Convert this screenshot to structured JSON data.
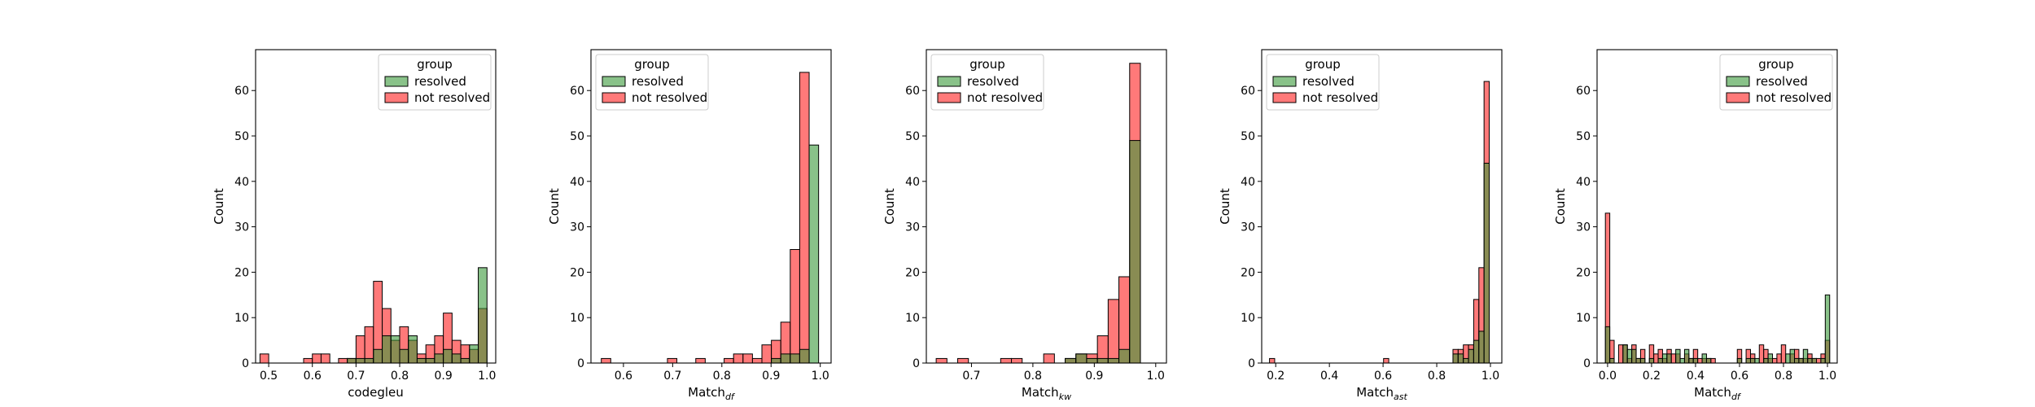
{
  "colors": {
    "resolved": "#3a9a3a",
    "not_resolved": "#ff4040",
    "overlap": "#6b6b1a"
  },
  "legend": {
    "title": "group",
    "entries": [
      "resolved",
      "not resolved"
    ]
  },
  "chart_data": [
    {
      "type": "histogram",
      "xlabel": "codegleu",
      "xlabel_sub": "",
      "ylabel": "Count",
      "xlim": [
        0.47,
        1.02
      ],
      "ylim": [
        0,
        69
      ],
      "xticks": [
        0.5,
        0.6,
        0.7,
        0.8,
        0.9,
        1.0
      ],
      "xtick_labels": [
        "0.5",
        "0.6",
        "0.7",
        "0.8",
        "0.9",
        "1.0"
      ],
      "yticks": [
        0,
        10,
        20,
        30,
        40,
        50,
        60
      ],
      "legend_position": "top-right",
      "bin_width": 0.02,
      "bins": [
        0.49,
        0.51,
        0.53,
        0.55,
        0.57,
        0.59,
        0.61,
        0.63,
        0.65,
        0.67,
        0.69,
        0.71,
        0.73,
        0.75,
        0.77,
        0.79,
        0.81,
        0.83,
        0.85,
        0.87,
        0.89,
        0.91,
        0.93,
        0.95,
        0.97,
        0.99
      ],
      "series": [
        {
          "name": "resolved",
          "values": [
            0,
            0,
            0,
            0,
            0,
            0,
            0,
            0,
            0,
            0,
            1,
            1,
            1,
            3,
            6,
            6,
            3,
            6,
            1,
            1,
            2,
            3,
            2,
            1,
            4,
            21
          ]
        },
        {
          "name": "not resolved",
          "values": [
            2,
            0,
            0,
            0,
            0,
            1,
            2,
            2,
            0,
            1,
            1,
            6,
            8,
            18,
            12,
            5,
            8,
            5,
            2,
            4,
            6,
            11,
            5,
            4,
            3,
            12
          ]
        }
      ]
    },
    {
      "type": "histogram",
      "xlabel": "Match",
      "xlabel_sub": "df",
      "ylabel": "Count",
      "xlim": [
        0.534,
        1.022
      ],
      "ylim": [
        0,
        69
      ],
      "xticks": [
        0.6,
        0.7,
        0.8,
        0.9,
        1.0
      ],
      "xtick_labels": [
        "0.6",
        "0.7",
        "0.8",
        "0.9",
        "1.0"
      ],
      "yticks": [
        0,
        10,
        20,
        30,
        40,
        50,
        60
      ],
      "legend_position": "top-left",
      "bin_width": 0.0192,
      "bins": [
        0.5646,
        0.5838,
        0.603,
        0.6222,
        0.6414,
        0.6606,
        0.6798,
        0.699,
        0.7182,
        0.7374,
        0.7566,
        0.7758,
        0.795,
        0.8142,
        0.8334,
        0.8526,
        0.8718,
        0.891,
        0.9102,
        0.9294,
        0.9486,
        0.9678,
        0.987
      ],
      "series": [
        {
          "name": "resolved",
          "values": [
            0,
            0,
            0,
            0,
            0,
            0,
            0,
            0,
            0,
            0,
            0,
            0,
            0,
            0,
            0,
            0,
            0,
            0,
            1,
            2,
            2,
            3,
            48
          ]
        },
        {
          "name": "not resolved",
          "values": [
            1,
            0,
            0,
            0,
            0,
            0,
            0,
            1,
            0,
            0,
            1,
            0,
            0,
            1,
            2,
            2,
            1,
            4,
            5,
            9,
            25,
            64,
            0
          ]
        }
      ]
    },
    {
      "type": "histogram",
      "xlabel": "Match",
      "xlabel_sub": "kw",
      "ylabel": "Count",
      "xlim": [
        0.6265,
        1.0175
      ],
      "ylim": [
        0,
        69
      ],
      "xticks": [
        0.7,
        0.8,
        0.9,
        1.0
      ],
      "xtick_labels": [
        "0.7",
        "0.8",
        "0.9",
        "1.0"
      ],
      "yticks": [
        0,
        10,
        20,
        30,
        40,
        50,
        60
      ],
      "legend_position": "top-left",
      "bin_width": 0.0175,
      "bins": [
        0.6513,
        0.6688,
        0.6863,
        0.7038,
        0.7213,
        0.7388,
        0.7563,
        0.7738,
        0.7913,
        0.8088,
        0.8263,
        0.8438,
        0.8613,
        0.8788,
        0.8963,
        0.9138,
        0.9313,
        0.9488,
        0.9663,
        0.9838
      ],
      "series": [
        {
          "name": "resolved",
          "values": [
            0,
            0,
            0,
            0,
            0,
            0,
            0,
            0,
            0,
            0,
            0,
            0,
            1,
            2,
            1,
            1,
            1,
            3,
            49,
            0
          ]
        },
        {
          "name": "not resolved",
          "values": [
            1,
            0,
            1,
            0,
            0,
            0,
            1,
            1,
            0,
            0,
            2,
            0,
            1,
            2,
            2,
            6,
            14,
            19,
            66,
            0
          ]
        }
      ]
    },
    {
      "type": "histogram",
      "xlabel": "Match",
      "xlabel_sub": "ast",
      "ylabel": "Count",
      "xlim": [
        0.1478,
        1.0425
      ],
      "ylim": [
        0,
        69
      ],
      "xticks": [
        0.2,
        0.4,
        0.6,
        0.8,
        1.0
      ],
      "xtick_labels": [
        "0.2",
        "0.4",
        "0.6",
        "0.8",
        "1.0"
      ],
      "yticks": [
        0,
        10,
        20,
        30,
        40,
        50,
        60
      ],
      "legend_position": "top-left",
      "bin_width": 0.0193,
      "bins": [
        0.1865,
        0.6115,
        0.8701,
        0.8894,
        0.9087,
        0.928,
        0.9473,
        0.9666,
        0.9859,
        1.0052
      ],
      "series": [
        {
          "name": "resolved",
          "values": [
            0,
            0,
            2,
            2,
            1,
            3,
            5,
            7,
            44,
            0
          ]
        },
        {
          "name": "not resolved",
          "values": [
            1,
            1,
            3,
            3,
            4,
            4,
            14,
            21,
            62,
            0
          ]
        }
      ]
    },
    {
      "type": "histogram",
      "xlabel": "Match",
      "xlabel_sub": "df",
      "ylabel": "Count",
      "xlim": [
        -0.0478,
        1.0443
      ],
      "ylim": [
        0,
        69
      ],
      "xticks": [
        0.0,
        0.2,
        0.4,
        0.6,
        0.8,
        1.0
      ],
      "xtick_labels": [
        "0.0",
        "0.2",
        "0.4",
        "0.6",
        "0.8",
        "1.0"
      ],
      "yticks": [
        0,
        10,
        20,
        30,
        40,
        50,
        60
      ],
      "legend_position": "top-right",
      "bin_width": 0.02,
      "bins": [
        0.0,
        0.02,
        0.04,
        0.06,
        0.08,
        0.1,
        0.12,
        0.14,
        0.16,
        0.18,
        0.2,
        0.22,
        0.24,
        0.26,
        0.28,
        0.3,
        0.32,
        0.34,
        0.36,
        0.38,
        0.4,
        0.42,
        0.44,
        0.46,
        0.48,
        0.5,
        0.52,
        0.54,
        0.56,
        0.58,
        0.6,
        0.62,
        0.64,
        0.66,
        0.68,
        0.7,
        0.72,
        0.74,
        0.76,
        0.78,
        0.8,
        0.82,
        0.84,
        0.86,
        0.88,
        0.9,
        0.92,
        0.94,
        0.96,
        0.98,
        1.0
      ],
      "series": [
        {
          "name": "resolved",
          "values": [
            8,
            1,
            0,
            0,
            4,
            3,
            3,
            1,
            1,
            0,
            1,
            0,
            1,
            2,
            2,
            0,
            3,
            1,
            3,
            1,
            1,
            0,
            2,
            1,
            0,
            0,
            0,
            0,
            0,
            0,
            1,
            0,
            1,
            1,
            1,
            0,
            1,
            2,
            0,
            0,
            0,
            2,
            3,
            1,
            1,
            3,
            1,
            1,
            0,
            1,
            15
          ]
        },
        {
          "name": "not resolved",
          "values": [
            33,
            5,
            0,
            4,
            4,
            1,
            4,
            1,
            3,
            0,
            4,
            2,
            3,
            1,
            3,
            2,
            2,
            0,
            2,
            1,
            3,
            1,
            1,
            1,
            1,
            0,
            0,
            0,
            0,
            0,
            3,
            0,
            3,
            2,
            0,
            4,
            3,
            1,
            1,
            2,
            4,
            0,
            2,
            3,
            1,
            1,
            2,
            1,
            1,
            2,
            5
          ]
        }
      ]
    }
  ]
}
